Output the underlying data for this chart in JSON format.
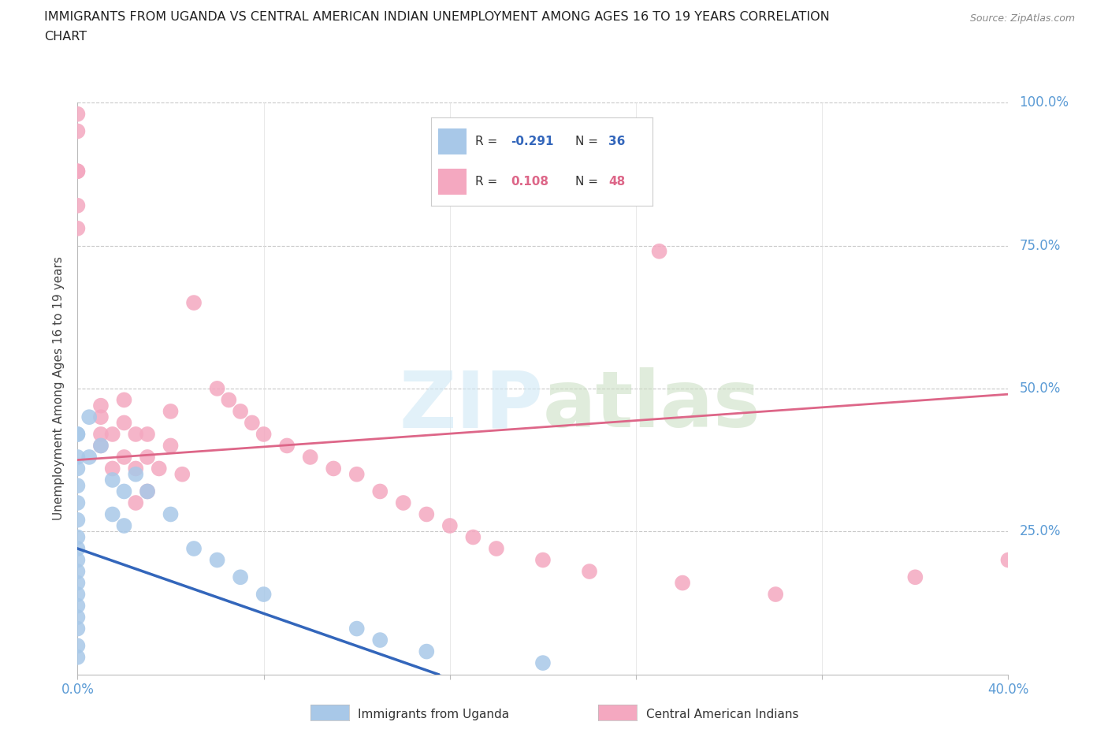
{
  "title_line1": "IMMIGRANTS FROM UGANDA VS CENTRAL AMERICAN INDIAN UNEMPLOYMENT AMONG AGES 16 TO 19 YEARS CORRELATION",
  "title_line2": "CHART",
  "source": "Source: ZipAtlas.com",
  "ylabel": "Unemployment Among Ages 16 to 19 years",
  "xlim": [
    0.0,
    0.4
  ],
  "ylim": [
    0.0,
    1.0
  ],
  "background_color": "#ffffff",
  "grid_color": "#c8c8c8",
  "uganda_color": "#a8c8e8",
  "uganda_edge": "#6699cc",
  "uganda_R": -0.291,
  "uganda_N": 36,
  "uganda_line_color": "#3366bb",
  "uganda_x": [
    0.0,
    0.0,
    0.0,
    0.0,
    0.0,
    0.0,
    0.0,
    0.0,
    0.0,
    0.0,
    0.0,
    0.0,
    0.0,
    0.0,
    0.0,
    0.0,
    0.0,
    0.0,
    0.005,
    0.005,
    0.01,
    0.015,
    0.015,
    0.02,
    0.02,
    0.025,
    0.03,
    0.04,
    0.05,
    0.06,
    0.07,
    0.08,
    0.12,
    0.13,
    0.15,
    0.2
  ],
  "uganda_y": [
    0.42,
    0.42,
    0.38,
    0.36,
    0.33,
    0.3,
    0.27,
    0.24,
    0.22,
    0.2,
    0.18,
    0.16,
    0.14,
    0.12,
    0.1,
    0.08,
    0.05,
    0.03,
    0.45,
    0.38,
    0.4,
    0.34,
    0.28,
    0.32,
    0.26,
    0.35,
    0.32,
    0.28,
    0.22,
    0.2,
    0.17,
    0.14,
    0.08,
    0.06,
    0.04,
    0.02
  ],
  "cai_color": "#f4a8c0",
  "cai_edge": "#dd6688",
  "cai_R": 0.108,
  "cai_N": 48,
  "cai_line_color": "#dd6688",
  "cai_x": [
    0.0,
    0.0,
    0.0,
    0.0,
    0.0,
    0.0,
    0.01,
    0.01,
    0.01,
    0.01,
    0.015,
    0.015,
    0.02,
    0.02,
    0.02,
    0.025,
    0.025,
    0.025,
    0.03,
    0.03,
    0.03,
    0.035,
    0.04,
    0.04,
    0.045,
    0.05,
    0.06,
    0.065,
    0.07,
    0.075,
    0.08,
    0.09,
    0.1,
    0.11,
    0.12,
    0.13,
    0.14,
    0.15,
    0.16,
    0.17,
    0.18,
    0.2,
    0.22,
    0.25,
    0.26,
    0.3,
    0.36,
    0.4
  ],
  "cai_y": [
    0.98,
    0.95,
    0.88,
    0.88,
    0.82,
    0.78,
    0.47,
    0.45,
    0.42,
    0.4,
    0.42,
    0.36,
    0.48,
    0.44,
    0.38,
    0.42,
    0.36,
    0.3,
    0.42,
    0.38,
    0.32,
    0.36,
    0.46,
    0.4,
    0.35,
    0.65,
    0.5,
    0.48,
    0.46,
    0.44,
    0.42,
    0.4,
    0.38,
    0.36,
    0.35,
    0.32,
    0.3,
    0.28,
    0.26,
    0.24,
    0.22,
    0.2,
    0.18,
    0.74,
    0.16,
    0.14,
    0.17,
    0.2
  ],
  "uganda_trend_x0": 0.0,
  "uganda_trend_y0": 0.22,
  "uganda_trend_x1": 0.155,
  "uganda_trend_y1": 0.0,
  "uganda_trend_xdash": 0.195,
  "uganda_trend_ydash": -0.055,
  "cai_trend_x0": 0.0,
  "cai_trend_y0": 0.375,
  "cai_trend_x1": 0.4,
  "cai_trend_y1": 0.49
}
